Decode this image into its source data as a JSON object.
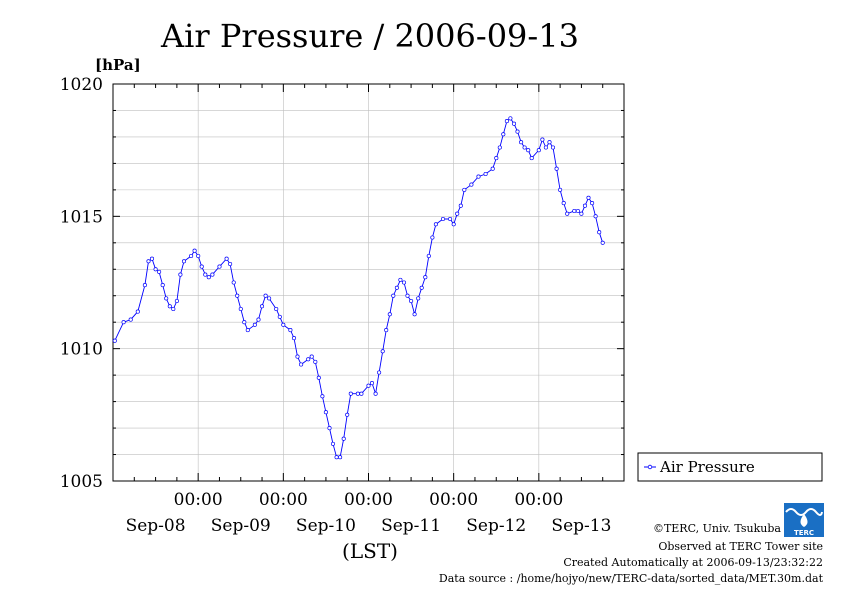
{
  "chart_data": {
    "type": "line",
    "title": "Air Pressure / 2006-09-13",
    "ylabel": "[hPa]",
    "xlabel": "(LST)",
    "ylim": [
      1005,
      1020
    ],
    "y_ticks": [
      "1005",
      "1010",
      "1015",
      "1020"
    ],
    "y_tick_values": [
      1005,
      1010,
      1015,
      1020
    ],
    "x_unit": "hours since 2006-09-07 00:00 LST",
    "xlim": [
      0,
      144
    ],
    "x_ticks": [
      {
        "x": 24,
        "time": "00:00",
        "date": "Sep-08"
      },
      {
        "x": 48,
        "time": "00:00",
        "date": "Sep-09"
      },
      {
        "x": 72,
        "time": "00:00",
        "date": "Sep-10"
      },
      {
        "x": 96,
        "time": "00:00",
        "date": "Sep-11"
      },
      {
        "x": 120,
        "time": "00:00",
        "date": "Sep-12"
      },
      {
        "x": 144,
        "time": "",
        "date": "Sep-13"
      }
    ],
    "grid": true,
    "legend_position": "right-bottom",
    "series": [
      {
        "name": "Air Pressure",
        "color": "#0000ff",
        "points": [
          [
            0.5,
            1010.3
          ],
          [
            3,
            1011.0
          ],
          [
            5,
            1011.1
          ],
          [
            7,
            1011.4
          ],
          [
            9,
            1012.4
          ],
          [
            10,
            1013.3
          ],
          [
            11,
            1013.4
          ],
          [
            12,
            1013.0
          ],
          [
            13,
            1012.9
          ],
          [
            14,
            1012.4
          ],
          [
            15,
            1011.9
          ],
          [
            16,
            1011.6
          ],
          [
            17,
            1011.5
          ],
          [
            18,
            1011.8
          ],
          [
            19,
            1012.8
          ],
          [
            20,
            1013.3
          ],
          [
            22,
            1013.5
          ],
          [
            23,
            1013.7
          ],
          [
            24,
            1013.5
          ],
          [
            25,
            1013.1
          ],
          [
            26,
            1012.8
          ],
          [
            27,
            1012.7
          ],
          [
            28,
            1012.8
          ],
          [
            30,
            1013.1
          ],
          [
            32,
            1013.4
          ],
          [
            33,
            1013.2
          ],
          [
            34,
            1012.5
          ],
          [
            35,
            1012.0
          ],
          [
            36,
            1011.5
          ],
          [
            37,
            1011.0
          ],
          [
            38,
            1010.7
          ],
          [
            40,
            1010.9
          ],
          [
            41,
            1011.1
          ],
          [
            42,
            1011.6
          ],
          [
            43,
            1012.0
          ],
          [
            44,
            1011.9
          ],
          [
            46,
            1011.5
          ],
          [
            47,
            1011.2
          ],
          [
            48,
            1010.9
          ],
          [
            50,
            1010.7
          ],
          [
            51,
            1010.4
          ],
          [
            52,
            1009.7
          ],
          [
            53,
            1009.4
          ],
          [
            55,
            1009.6
          ],
          [
            56,
            1009.7
          ],
          [
            57,
            1009.5
          ],
          [
            58,
            1008.9
          ],
          [
            59,
            1008.2
          ],
          [
            60,
            1007.6
          ],
          [
            61,
            1007.0
          ],
          [
            62,
            1006.4
          ],
          [
            63,
            1005.9
          ],
          [
            64,
            1005.9
          ],
          [
            65,
            1006.6
          ],
          [
            66,
            1007.5
          ],
          [
            67,
            1008.3
          ],
          [
            69,
            1008.3
          ],
          [
            70,
            1008.3
          ],
          [
            72,
            1008.6
          ],
          [
            73,
            1008.7
          ],
          [
            74,
            1008.3
          ],
          [
            75,
            1009.1
          ],
          [
            76,
            1009.9
          ],
          [
            77,
            1010.7
          ],
          [
            78,
            1011.3
          ],
          [
            79,
            1012.0
          ],
          [
            80,
            1012.3
          ],
          [
            81,
            1012.6
          ],
          [
            82,
            1012.5
          ],
          [
            83,
            1012.0
          ],
          [
            84,
            1011.8
          ],
          [
            85,
            1011.3
          ],
          [
            86,
            1011.9
          ],
          [
            87,
            1012.3
          ],
          [
            88,
            1012.7
          ],
          [
            89,
            1013.5
          ],
          [
            90,
            1014.2
          ],
          [
            91,
            1014.7
          ],
          [
            93,
            1014.9
          ],
          [
            95,
            1014.9
          ],
          [
            96,
            1014.7
          ],
          [
            97,
            1015.1
          ],
          [
            98,
            1015.4
          ],
          [
            99,
            1016.0
          ],
          [
            101,
            1016.2
          ],
          [
            103,
            1016.5
          ],
          [
            105,
            1016.6
          ],
          [
            107,
            1016.8
          ],
          [
            108,
            1017.2
          ],
          [
            109,
            1017.6
          ],
          [
            110,
            1018.1
          ],
          [
            111,
            1018.6
          ],
          [
            112,
            1018.7
          ],
          [
            113,
            1018.5
          ],
          [
            114,
            1018.2
          ],
          [
            115,
            1017.8
          ],
          [
            116,
            1017.6
          ],
          [
            117,
            1017.5
          ],
          [
            118,
            1017.2
          ],
          [
            120,
            1017.5
          ],
          [
            121,
            1017.9
          ],
          [
            122,
            1017.6
          ],
          [
            123,
            1017.8
          ],
          [
            124,
            1017.6
          ],
          [
            125,
            1016.8
          ],
          [
            126,
            1016.0
          ],
          [
            127,
            1015.5
          ],
          [
            128,
            1015.1
          ],
          [
            130,
            1015.2
          ],
          [
            131,
            1015.2
          ],
          [
            132,
            1015.1
          ],
          [
            133,
            1015.4
          ],
          [
            134,
            1015.7
          ],
          [
            135,
            1015.5
          ],
          [
            136,
            1015.0
          ],
          [
            137,
            1014.4
          ],
          [
            138,
            1014.0
          ]
        ]
      }
    ]
  },
  "footer": {
    "credit": "©TERC, Univ. Tsukuba",
    "site": "Observed at TERC Tower site",
    "created": "Created Automatically at 2006-09-13/23:32:22",
    "source": "Data source : /home/hojyo/new/TERC-data/sorted_data/MET.30m.dat"
  },
  "logo": {
    "text": "TERC",
    "color": "#1a6fc4"
  }
}
